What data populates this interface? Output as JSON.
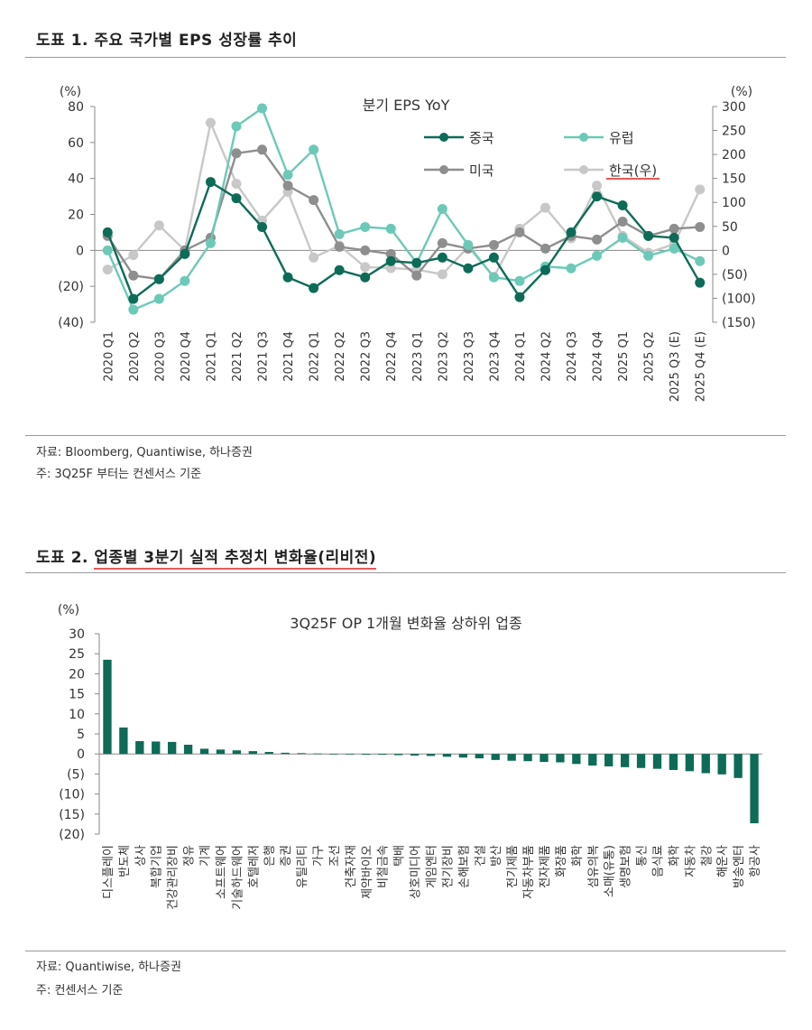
{
  "figure1": {
    "title_prefix": "도표 1.",
    "title": "주요 국가별 EPS 성장률 추이",
    "source": "자료: Bloomberg, Quantiwise, 하나증권",
    "note": "주: 3Q25F 부터는 컨센서스 기준",
    "chart_data": {
      "type": "line",
      "title": "분기 EPS YoY",
      "left_unit": "(%)",
      "right_unit": "(%)",
      "ylim_left": [
        -40,
        80
      ],
      "ylim_right": [
        -150,
        300
      ],
      "left_ticks": [
        80,
        60,
        40,
        20,
        0,
        -20,
        -40
      ],
      "left_tick_labels": [
        "80",
        "60",
        "40",
        "20",
        "0",
        "(20)",
        "(40)"
      ],
      "right_ticks": [
        300,
        250,
        200,
        150,
        100,
        50,
        0,
        -50,
        -100,
        -150
      ],
      "right_tick_labels": [
        "300",
        "250",
        "200",
        "150",
        "100",
        "50",
        "0",
        "(50)",
        "(100)",
        "(150)"
      ],
      "categories": [
        "2020 Q1",
        "2020 Q2",
        "2020 Q3",
        "2020 Q4",
        "2021 Q1",
        "2021 Q2",
        "2021 Q3",
        "2021 Q4",
        "2022 Q1",
        "2022 Q2",
        "2022 Q3",
        "2022 Q4",
        "2023 Q1",
        "2023 Q2",
        "2023 Q3",
        "2023 Q4",
        "2024 Q1",
        "2024 Q2",
        "2024 Q3",
        "2024 Q4",
        "2025 Q1",
        "2025 Q2",
        "2025 Q3 (E)",
        "2025 Q4 (E)"
      ],
      "series": [
        {
          "name": "중국",
          "axis": "left",
          "color": "#0d6b57",
          "values": [
            10,
            -27,
            -16,
            -2,
            38,
            29,
            13,
            -15,
            -21,
            -11,
            -15,
            -6,
            -7,
            -4,
            -10,
            -4,
            -26,
            -11,
            10,
            30,
            25,
            8,
            7,
            -18
          ]
        },
        {
          "name": "유럽",
          "axis": "left",
          "color": "#6cc9b7",
          "values": [
            0,
            -33,
            -27,
            -17,
            4,
            69,
            79,
            42,
            56,
            9,
            13,
            12,
            -7,
            23,
            3,
            -15,
            -17,
            -9,
            -10,
            -3,
            7,
            -3,
            1,
            -6
          ]
        },
        {
          "name": "미국",
          "axis": "left",
          "color": "#8e8e8e",
          "values": [
            8,
            -14,
            -16,
            0,
            7,
            54,
            56,
            36,
            28,
            2,
            0,
            -2,
            -14,
            4,
            1,
            3,
            10,
            1,
            8,
            6,
            16,
            8,
            12,
            13
          ]
        },
        {
          "name": "한국(우)",
          "axis": "right",
          "color": "#c8c8c8",
          "values": [
            -40,
            -10,
            52,
            0,
            266,
            139,
            62,
            122,
            -15,
            10,
            -35,
            -37,
            -40,
            -50,
            7,
            -55,
            45,
            89,
            25,
            135,
            30,
            -5,
            13,
            127
          ]
        }
      ],
      "legend": [
        "중국",
        "유럽",
        "미국",
        "한국(우)"
      ],
      "legend_position": "top-right"
    }
  },
  "figure2": {
    "title_prefix": "도표 2.",
    "title": "업종별 3분기 실적 추정치 변화율(리비전)",
    "source": "자료: Quantiwise, 하나증권",
    "note": "주: 컨센서스 기준",
    "chart_data": {
      "type": "bar",
      "title": "3Q25F OP 1개월 변화율 상하위 업종",
      "ylabel": "(%)",
      "ylim": [
        -20,
        30
      ],
      "y_ticks": [
        30,
        25,
        20,
        15,
        10,
        5,
        0,
        -5,
        -10,
        -15,
        -20
      ],
      "y_tick_labels": [
        "30",
        "25",
        "20",
        "15",
        "10",
        "5",
        "0",
        "(5)",
        "(10)",
        "(15)",
        "(20)"
      ],
      "bar_color": "#0d6b57",
      "categories": [
        "디스플레이",
        "반도체",
        "상사",
        "복합기업",
        "건강관리장비",
        "정유",
        "기계",
        "소프트웨어",
        "기술하드웨어",
        "호텔레저",
        "은행",
        "증권",
        "유틸리티",
        "가구",
        "조선",
        "건축자재",
        "제약바이오",
        "비철금속",
        "택배",
        "상호미디어",
        "게임엔터",
        "전기장비",
        "손해보험",
        "건설",
        "방산",
        "전기제품",
        "자동차부품",
        "전자제품",
        "화장품",
        "화학",
        "섬유의복",
        "소매(유통)",
        "생명보험",
        "통신",
        "음식료",
        "화학",
        "자동차",
        "철강",
        "해운사",
        "방송엔터",
        "항공사"
      ],
      "values": [
        23.5,
        6.6,
        3.2,
        3.1,
        3.0,
        2.3,
        1.3,
        1.1,
        0.9,
        0.7,
        0.5,
        0.3,
        0.2,
        0.1,
        0.0,
        -0.1,
        -0.2,
        -0.2,
        -0.3,
        -0.4,
        -0.5,
        -0.7,
        -0.9,
        -1.1,
        -1.5,
        -1.7,
        -1.8,
        -2.0,
        -2.1,
        -2.5,
        -2.9,
        -3.1,
        -3.3,
        -3.5,
        -3.7,
        -4.0,
        -4.3,
        -4.8,
        -5.1,
        -6.0,
        -17.3
      ]
    }
  }
}
